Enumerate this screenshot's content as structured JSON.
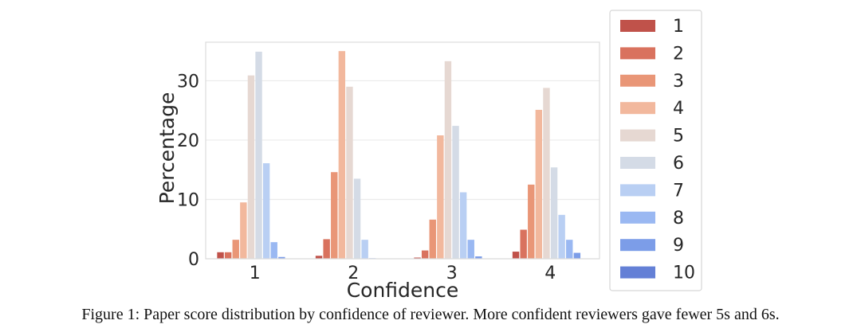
{
  "chart_data": {
    "type": "bar",
    "title": "",
    "xlabel": "Confidence",
    "ylabel": "Percentage",
    "categories": [
      "1",
      "2",
      "3",
      "4"
    ],
    "ylim": [
      0,
      36.5
    ],
    "yticks": [
      0,
      10,
      20,
      30
    ],
    "grid": true,
    "legend_position": "right",
    "series": [
      {
        "name": "1",
        "color": "#c0524a",
        "values": [
          1.1,
          0.5,
          0.2,
          1.2
        ]
      },
      {
        "name": "2",
        "color": "#d9725e",
        "values": [
          1.1,
          3.3,
          1.4,
          4.9
        ]
      },
      {
        "name": "3",
        "color": "#e99677",
        "values": [
          3.2,
          14.6,
          6.6,
          12.5
        ]
      },
      {
        "name": "4",
        "color": "#f2b89d",
        "values": [
          9.5,
          35.0,
          20.8,
          25.1
        ]
      },
      {
        "name": "5",
        "color": "#e6d8d2",
        "values": [
          30.9,
          29.0,
          33.3,
          28.8
        ]
      },
      {
        "name": "6",
        "color": "#d4dbe6",
        "values": [
          34.9,
          13.5,
          22.4,
          15.4
        ]
      },
      {
        "name": "7",
        "color": "#b9cff3",
        "values": [
          16.1,
          3.2,
          11.2,
          7.4
        ]
      },
      {
        "name": "8",
        "color": "#9ab8f2",
        "values": [
          2.8,
          0.1,
          3.2,
          3.2
        ]
      },
      {
        "name": "9",
        "color": "#7c9de8",
        "values": [
          0.3,
          0.0,
          0.4,
          1.0
        ]
      },
      {
        "name": "10",
        "color": "#6480d6",
        "values": [
          0.0,
          0.0,
          0.0,
          0.0
        ]
      }
    ]
  },
  "caption": "Figure 1: Paper score distribution by confidence of reviewer. More confident reviewers gave fewer 5s and 6s."
}
